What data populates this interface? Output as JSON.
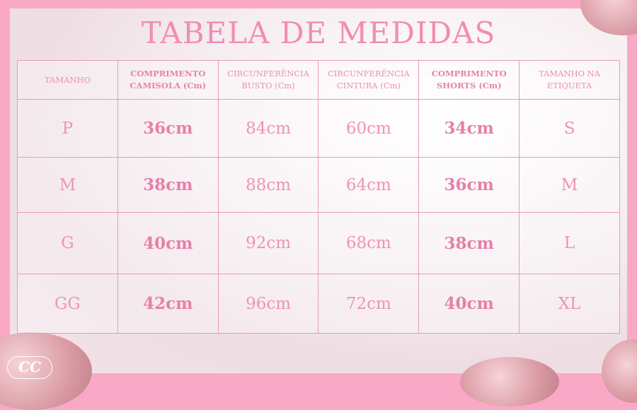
{
  "title": "TABELA DE MEDIDAS",
  "headers": [
    {
      "label": "TAMANHO",
      "bold": false
    },
    {
      "label": "COMPRIMENTO CAMISOLA (Cm)",
      "bold": true
    },
    {
      "label": "CIRCUNFERÊNCIA BUSTO (Cm)",
      "bold": false
    },
    {
      "label": "CIRCUNFERÊNCIA CINTURA (Cm)",
      "bold": false
    },
    {
      "label": "COMPRIMENTO SHORTS (Cm)",
      "bold": true
    },
    {
      "label": "TAMANHO NA ETIQUETA",
      "bold": false
    }
  ],
  "rows": [
    [
      "P",
      "36cm",
      "84cm",
      "60cm",
      "34cm",
      "S"
    ],
    [
      "M",
      "38cm",
      "88cm",
      "64cm",
      "36cm",
      "M"
    ],
    [
      "G",
      "40cm",
      "92cm",
      "68cm",
      "38cm",
      "L"
    ],
    [
      "GG",
      "42cm",
      "96cm",
      "72cm",
      "40cm",
      "XL"
    ]
  ],
  "logo": "CC",
  "colors": {
    "frame": "#f9a9c6",
    "text": "#ee93b6"
  }
}
